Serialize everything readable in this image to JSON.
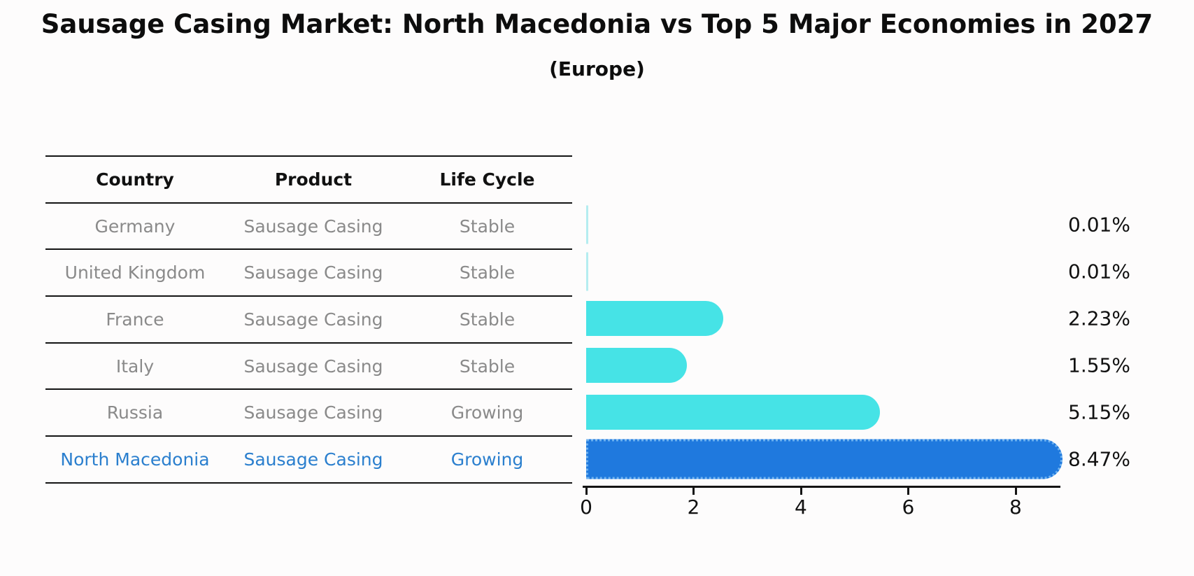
{
  "title": "Sausage Casing Market: North Macedonia vs Top 5 Major Economies in 2027",
  "subtitle": "(Europe)",
  "table": {
    "headers": [
      "Country",
      "Product",
      "Life Cycle"
    ],
    "rows": [
      {
        "country": "Germany",
        "product": "Sausage Casing",
        "life_cycle": "Stable"
      },
      {
        "country": "United Kingdom",
        "product": "Sausage Casing",
        "life_cycle": "Stable"
      },
      {
        "country": "France",
        "product": "Sausage Casing",
        "life_cycle": "Stable"
      },
      {
        "country": "Italy",
        "product": "Sausage Casing",
        "life_cycle": "Stable"
      },
      {
        "country": "Russia",
        "product": "Sausage Casing",
        "life_cycle": "Growing"
      },
      {
        "country": "North Macedonia",
        "product": "Sausage Casing",
        "life_cycle": "Growing"
      }
    ]
  },
  "chart_data": {
    "type": "bar",
    "orientation": "horizontal",
    "title": "Sausage Casing Market: North Macedonia vs Top 5 Major Economies in 2027",
    "subtitle": "(Europe)",
    "categories": [
      "Germany",
      "United Kingdom",
      "France",
      "Italy",
      "Russia",
      "North Macedonia"
    ],
    "values": [
      0.01,
      0.01,
      2.23,
      1.55,
      5.15,
      8.47
    ],
    "labels": [
      "0.01%",
      "0.01%",
      "2.23%",
      "1.55%",
      "5.15%",
      "8.47%"
    ],
    "x_ticks": [
      "0",
      "2",
      "4",
      "6",
      "8"
    ],
    "xlim": [
      0,
      8.9
    ],
    "grid": false,
    "legend": false,
    "bar_color": "#46e3e6",
    "sliver_color": "#b5edf0",
    "highlight_color": "#1f79de",
    "highlight_index": 5,
    "value_label_color": "#111111"
  },
  "colors": {
    "background": "#fdfcfc",
    "row_text": "#8a8a8a",
    "highlight_text": "#2b7fce",
    "header_text": "#111111",
    "axis": "#141414"
  }
}
